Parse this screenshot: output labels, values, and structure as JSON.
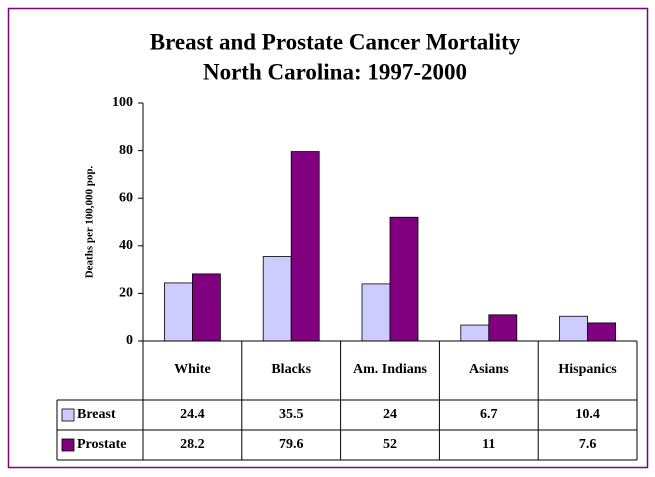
{
  "chart_data": {
    "type": "bar",
    "title": "Breast and Prostate Cancer Mortality",
    "subtitle": "North Carolina: 1997-2000",
    "y_label": "Deaths per 100,000 pop.",
    "categories": [
      "White",
      "Blacks",
      "Am. Indians",
      "Asians",
      "Hispanics"
    ],
    "series": [
      {
        "name": "Breast",
        "color": "#ccccff",
        "values": [
          24.4,
          35.5,
          24,
          6.7,
          10.4
        ]
      },
      {
        "name": "Prostate",
        "color": "#800080",
        "values": [
          28.2,
          79.6,
          52,
          11,
          7.6
        ]
      }
    ],
    "ylim": [
      0,
      100
    ],
    "yticks": [
      0,
      20,
      40,
      60,
      80,
      100
    ]
  }
}
